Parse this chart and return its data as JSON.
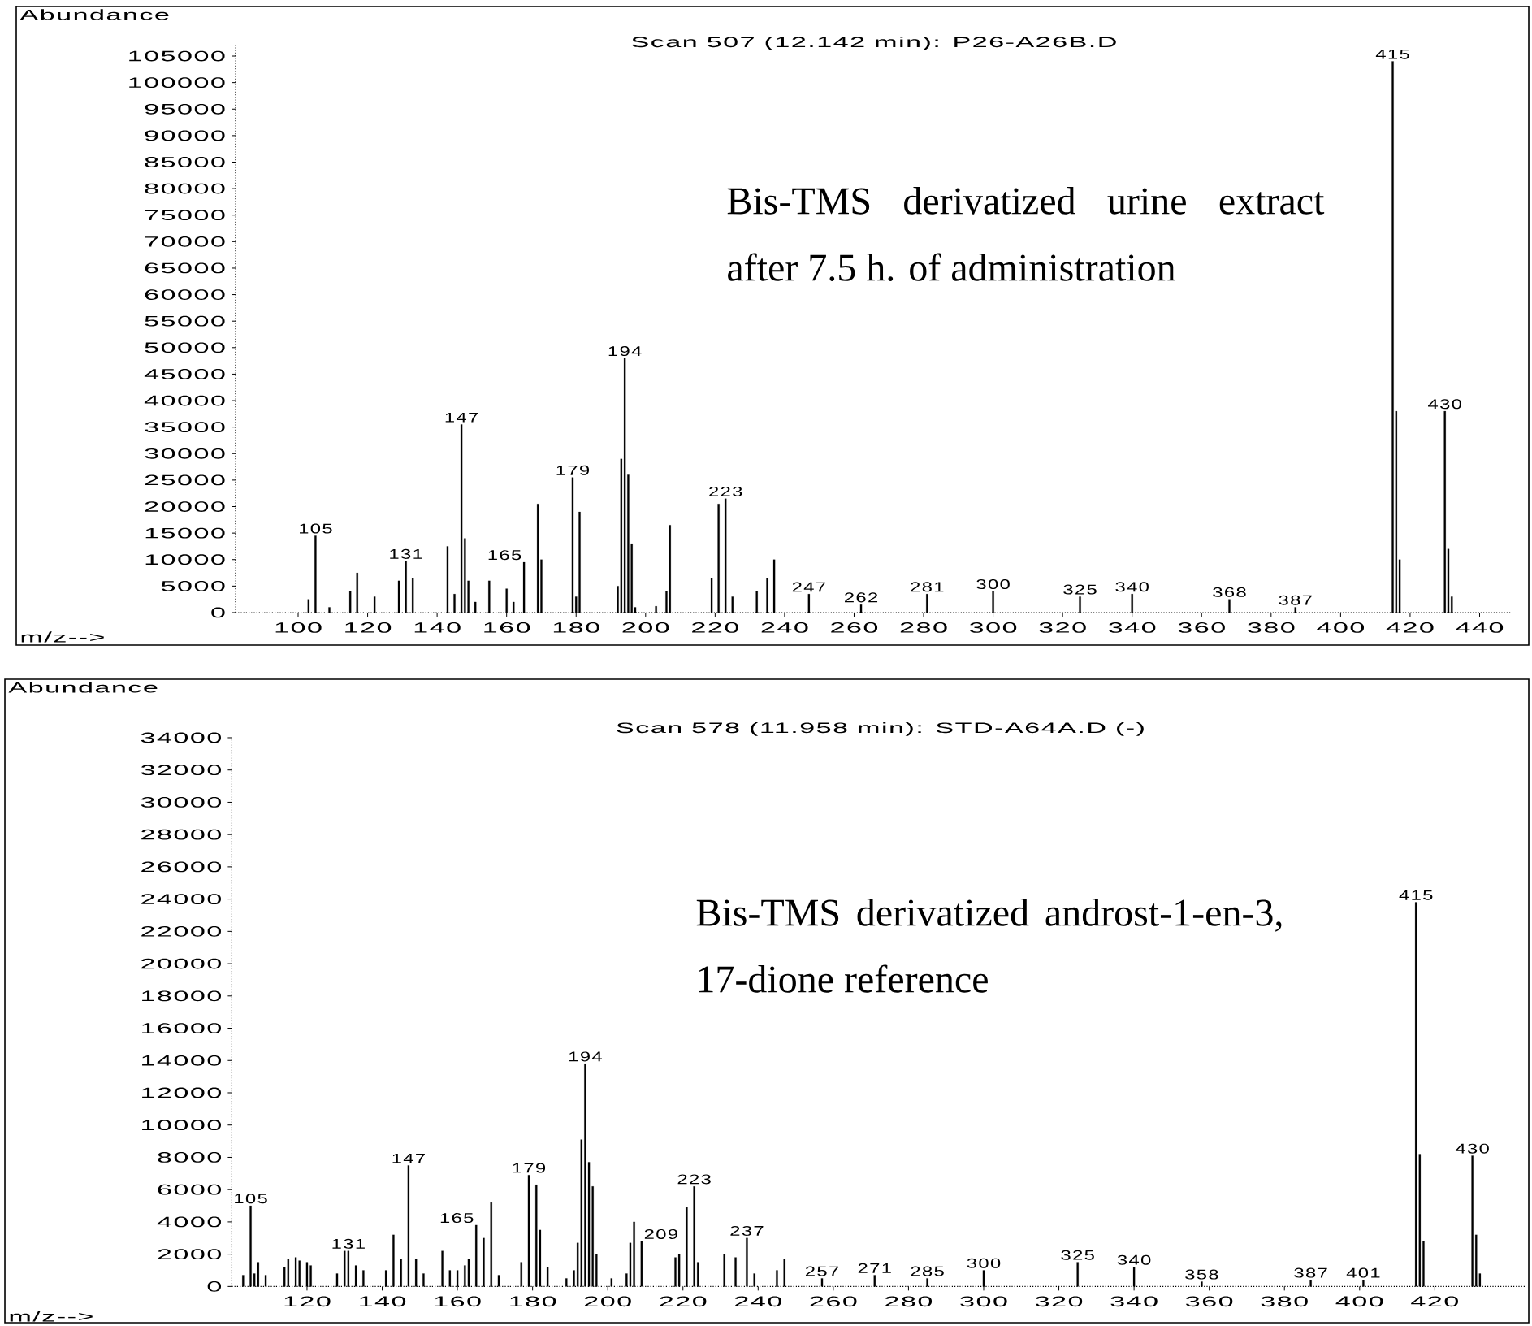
{
  "chart_data": [
    {
      "type": "bar",
      "title": "Scan 507 (12.142 min): P26-A26B.D",
      "xlabel": "m/z-->",
      "ylabel": "Abundance",
      "color": "#000000",
      "x": [
        103,
        105,
        109,
        115,
        117,
        122,
        129,
        131,
        133,
        143,
        145,
        147,
        148,
        149,
        151,
        155,
        160,
        162,
        165,
        169,
        170,
        179,
        180,
        181,
        192,
        193,
        194,
        195,
        196,
        197,
        203,
        206,
        207,
        219,
        221,
        223,
        225,
        232,
        235,
        237,
        247,
        262,
        281,
        300,
        325,
        340,
        368,
        387,
        415,
        416,
        417,
        430,
        431,
        432
      ],
      "values": [
        2500,
        14500,
        1000,
        4000,
        7500,
        3000,
        6000,
        9700,
        6500,
        12500,
        3500,
        35500,
        14000,
        6000,
        2000,
        6000,
        4500,
        2000,
        9500,
        20500,
        10000,
        25500,
        3000,
        19000,
        5000,
        29000,
        48000,
        26000,
        13000,
        1000,
        1200,
        4000,
        16500,
        6500,
        20500,
        21500,
        3000,
        4000,
        6500,
        10000,
        3500,
        1500,
        3500,
        4000,
        3000,
        3500,
        2500,
        1000,
        104000,
        38000,
        10000,
        38000,
        12000,
        3000
      ],
      "xlim": [
        82,
        449
      ],
      "ylim": [
        0,
        107000
      ],
      "xticks": [
        100,
        120,
        140,
        160,
        180,
        200,
        220,
        240,
        260,
        280,
        300,
        320,
        340,
        360,
        380,
        400,
        420,
        440
      ],
      "yticks": [
        0,
        5000,
        10000,
        15000,
        20000,
        25000,
        30000,
        35000,
        40000,
        45000,
        50000,
        55000,
        60000,
        65000,
        70000,
        75000,
        80000,
        85000,
        90000,
        95000,
        100000,
        105000
      ],
      "annotations": [
        {
          "text": "105",
          "x": 105,
          "y": 14500
        },
        {
          "text": "131",
          "x": 131,
          "y": 9700
        },
        {
          "text": "147",
          "x": 147,
          "y": 35500
        },
        {
          "text": "165",
          "x": 165,
          "y": 9500
        },
        {
          "text": "179",
          "x": 179,
          "y": 25500
        },
        {
          "text": "194",
          "x": 194,
          "y": 48000
        },
        {
          "text": "223",
          "x": 223,
          "y": 21500
        },
        {
          "text": "247",
          "x": 247,
          "y": 3500
        },
        {
          "text": "262",
          "x": 262,
          "y": 1500
        },
        {
          "text": "281",
          "x": 281,
          "y": 3500
        },
        {
          "text": "300",
          "x": 300,
          "y": 4000
        },
        {
          "text": "325",
          "x": 325,
          "y": 3000
        },
        {
          "text": "340",
          "x": 340,
          "y": 3500
        },
        {
          "text": "368",
          "x": 368,
          "y": 2500
        },
        {
          "text": "387",
          "x": 387,
          "y": 1000
        },
        {
          "text": "415",
          "x": 415,
          "y": 104000
        },
        {
          "text": "430",
          "x": 430,
          "y": 38000
        },
        "Bis-TMS derivatized urine extract after 7.5 h. of administration"
      ]
    },
    {
      "type": "bar",
      "title": "Scan 578 (11.958 min): STD-A64A.D (-)",
      "xlabel": "m/z-->",
      "ylabel": "Abundance",
      "color": "#000000",
      "x": [
        103,
        105,
        106,
        107,
        109,
        114,
        115,
        117,
        118,
        120,
        121,
        128,
        130,
        131,
        133,
        135,
        141,
        143,
        145,
        147,
        149,
        151,
        156,
        158,
        160,
        162,
        163,
        165,
        167,
        169,
        171,
        177,
        179,
        181,
        182,
        184,
        189,
        191,
        192,
        193,
        194,
        195,
        196,
        197,
        201,
        205,
        206,
        207,
        209,
        218,
        219,
        221,
        223,
        224,
        231,
        234,
        237,
        239,
        245,
        247,
        257,
        271,
        285,
        300,
        325,
        340,
        358,
        387,
        401,
        415,
        416,
        417,
        430,
        431,
        432
      ],
      "values": [
        700,
        5000,
        800,
        1500,
        700,
        1200,
        1700,
        1800,
        1600,
        1500,
        1300,
        800,
        2200,
        2200,
        1300,
        1000,
        1000,
        3200,
        1700,
        7500,
        1700,
        800,
        2200,
        1000,
        1000,
        1300,
        1700,
        3800,
        3000,
        5200,
        700,
        1500,
        6900,
        6300,
        3500,
        1200,
        500,
        1000,
        2700,
        9100,
        13800,
        7700,
        6200,
        2000,
        500,
        800,
        2700,
        4000,
        2800,
        1800,
        2000,
        4900,
        6200,
        1500,
        2000,
        1800,
        3000,
        800,
        1000,
        1700,
        500,
        700,
        500,
        1000,
        1500,
        1200,
        300,
        400,
        400,
        23800,
        8200,
        2800,
        8100,
        3200,
        800
      ],
      "xlim": [
        100,
        444
      ],
      "ylim": [
        0,
        34000
      ],
      "xticks": [
        120,
        140,
        160,
        180,
        200,
        220,
        240,
        260,
        280,
        300,
        320,
        340,
        360,
        380,
        400,
        420
      ],
      "yticks": [
        0,
        2000,
        4000,
        6000,
        8000,
        10000,
        12000,
        14000,
        16000,
        18000,
        20000,
        22000,
        24000,
        26000,
        28000,
        30000,
        32000,
        34000
      ],
      "annotations": [
        {
          "text": "105",
          "x": 105,
          "y": 5000
        },
        {
          "text": "131",
          "x": 131,
          "y": 2200
        },
        {
          "text": "147",
          "x": 147,
          "y": 7500
        },
        {
          "text": "165",
          "x": 165,
          "y": 3800
        },
        {
          "text": "179",
          "x": 179,
          "y": 6900
        },
        {
          "text": "194",
          "x": 194,
          "y": 13800
        },
        {
          "text": "209",
          "x": 209,
          "y": 2800
        },
        {
          "text": "223",
          "x": 223,
          "y": 6200
        },
        {
          "text": "237",
          "x": 237,
          "y": 3000
        },
        {
          "text": "257",
          "x": 257,
          "y": 500
        },
        {
          "text": "271",
          "x": 271,
          "y": 700
        },
        {
          "text": "285",
          "x": 285,
          "y": 500
        },
        {
          "text": "300",
          "x": 300,
          "y": 1000
        },
        {
          "text": "325",
          "x": 325,
          "y": 1500
        },
        {
          "text": "340",
          "x": 340,
          "y": 1200
        },
        {
          "text": "358",
          "x": 358,
          "y": 300
        },
        {
          "text": "387",
          "x": 387,
          "y": 400
        },
        {
          "text": "401",
          "x": 401,
          "y": 400
        },
        {
          "text": "415",
          "x": 415,
          "y": 23800
        },
        {
          "text": "430",
          "x": 430,
          "y": 8100
        },
        "Bis-TMS derivatized androst-1-en-3, 17-dione reference"
      ]
    }
  ]
}
